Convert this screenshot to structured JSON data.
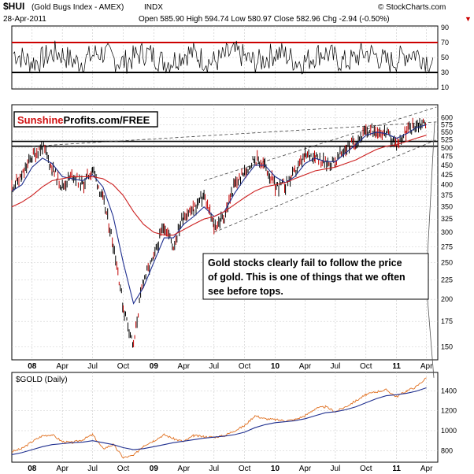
{
  "header": {
    "symbol": "$HUI",
    "name": "(Gold Bugs Index - AMEX)",
    "exchange": "INDX",
    "date": "28-Apr-2011",
    "source": "© StockCharts.com",
    "quote": "Open 585.90  High 594.74  Low 580.97  Close 582.96  Chg -2.94 (-0.50%)",
    "chg_arrow": "▼"
  },
  "logo": {
    "red_part": "Sunshine",
    "black_part": "Profits.com/FREE"
  },
  "annotation": {
    "lines": [
      "Gold stocks clearly fail to follow the price",
      "of gold. This is one of things that we often",
      "see before tops."
    ]
  },
  "colors": {
    "price": "#000000",
    "sma_fast": "#1f2f8f",
    "sma_slow": "#cc1f1f",
    "rsi_band": "#cc0000",
    "gold_price": "#e07020",
    "gold_ma": "#1f2f8f",
    "grid": "#c8c8c8"
  },
  "chart_data": [
    {
      "type": "line",
      "panel": "RSI",
      "y_ticks": [
        10,
        30,
        50,
        70,
        90
      ],
      "guide_levels": [
        30,
        70
      ],
      "ylim": [
        10,
        90
      ],
      "grid": true
    },
    {
      "type": "line",
      "panel": "$HUI price",
      "x_tick_labels": [
        "08",
        "Apr",
        "Jul",
        "Oct",
        "09",
        "Apr",
        "Jul",
        "Oct",
        "10",
        "Apr",
        "Jul",
        "Oct",
        "11",
        "Apr"
      ],
      "x_tick_dates": [
        "2008-01",
        "2008-04",
        "2008-07",
        "2008-10",
        "2009-01",
        "2009-04",
        "2009-07",
        "2009-10",
        "2010-01",
        "2010-04",
        "2010-07",
        "2010-10",
        "2011-01",
        "2011-04"
      ],
      "y_ticks": [
        150,
        175,
        200,
        225,
        250,
        275,
        300,
        325,
        350,
        375,
        400,
        425,
        450,
        475,
        500,
        525,
        550,
        575,
        600
      ],
      "ylim": [
        140,
        640
      ],
      "scale": "log",
      "grid": true,
      "dates": [
        "2007-11",
        "2007-12",
        "2008-01",
        "2008-02",
        "2008-03",
        "2008-04",
        "2008-05",
        "2008-06",
        "2008-07",
        "2008-08",
        "2008-09",
        "2008-10",
        "2008-11",
        "2008-12",
        "2009-01",
        "2009-02",
        "2009-03",
        "2009-04",
        "2009-05",
        "2009-06",
        "2009-07",
        "2009-08",
        "2009-09",
        "2009-10",
        "2009-11",
        "2009-12",
        "2010-01",
        "2010-02",
        "2010-03",
        "2010-04",
        "2010-05",
        "2010-06",
        "2010-07",
        "2010-08",
        "2010-09",
        "2010-10",
        "2010-11",
        "2010-12",
        "2011-01",
        "2011-02",
        "2011-03",
        "2011-04"
      ],
      "series": [
        {
          "values": [
            395,
            420,
            475,
            505,
            440,
            395,
            425,
            400,
            440,
            365,
            280,
            190,
            150,
            225,
            255,
            315,
            275,
            335,
            345,
            375,
            310,
            330,
            400,
            430,
            470,
            450,
            395,
            400,
            430,
            475,
            480,
            455,
            460,
            500,
            520,
            550,
            560,
            545,
            510,
            555,
            575,
            583
          ]
        },
        {
          "values": [
            385,
            400,
            445,
            470,
            455,
            420,
            415,
            410,
            425,
            395,
            330,
            250,
            195,
            215,
            250,
            290,
            290,
            315,
            330,
            350,
            330,
            340,
            380,
            415,
            450,
            450,
            420,
            405,
            420,
            455,
            470,
            460,
            460,
            485,
            510,
            540,
            550,
            545,
            530,
            545,
            565,
            575
          ]
        },
        {
          "values": [
            350,
            360,
            375,
            395,
            410,
            415,
            420,
            420,
            420,
            415,
            400,
            375,
            340,
            315,
            300,
            295,
            295,
            305,
            315,
            325,
            330,
            340,
            355,
            370,
            385,
            395,
            400,
            405,
            415,
            425,
            435,
            440,
            445,
            455,
            465,
            480,
            495,
            505,
            510,
            520,
            530,
            540
          ]
        }
      ],
      "horizontal_levels": [
        505,
        520
      ]
    },
    {
      "type": "line",
      "panel": "$GOLD (Daily)",
      "title": "$GOLD (Daily)",
      "y_ticks": [
        800,
        1000,
        1200,
        1400
      ],
      "ylim": [
        700,
        1560
      ],
      "grid": true,
      "dates": [
        "2007-11",
        "2007-12",
        "2008-01",
        "2008-02",
        "2008-03",
        "2008-04",
        "2008-05",
        "2008-06",
        "2008-07",
        "2008-08",
        "2008-09",
        "2008-10",
        "2008-11",
        "2008-12",
        "2009-01",
        "2009-02",
        "2009-03",
        "2009-04",
        "2009-05",
        "2009-06",
        "2009-07",
        "2009-08",
        "2009-09",
        "2009-10",
        "2009-11",
        "2009-12",
        "2010-01",
        "2010-02",
        "2010-03",
        "2010-04",
        "2010-05",
        "2010-06",
        "2010-07",
        "2010-08",
        "2010-09",
        "2010-10",
        "2010-11",
        "2010-12",
        "2011-01",
        "2011-02",
        "2011-03",
        "2011-04"
      ],
      "series": [
        {
          "values": [
            790,
            820,
            890,
            950,
            960,
            890,
            880,
            910,
            960,
            820,
            860,
            730,
            750,
            850,
            900,
            960,
            920,
            890,
            950,
            940,
            935,
            950,
            1000,
            1050,
            1150,
            1120,
            1110,
            1100,
            1110,
            1150,
            1220,
            1240,
            1190,
            1240,
            1300,
            1360,
            1390,
            1410,
            1340,
            1400,
            1440,
            1530
          ]
        },
        {
          "values": [
            760,
            780,
            810,
            840,
            860,
            870,
            880,
            885,
            900,
            880,
            860,
            830,
            810,
            820,
            840,
            860,
            880,
            895,
            910,
            925,
            935,
            945,
            960,
            985,
            1030,
            1060,
            1080,
            1090,
            1100,
            1120,
            1150,
            1180,
            1190,
            1210,
            1240,
            1280,
            1320,
            1350,
            1360,
            1375,
            1395,
            1430
          ]
        }
      ]
    }
  ]
}
